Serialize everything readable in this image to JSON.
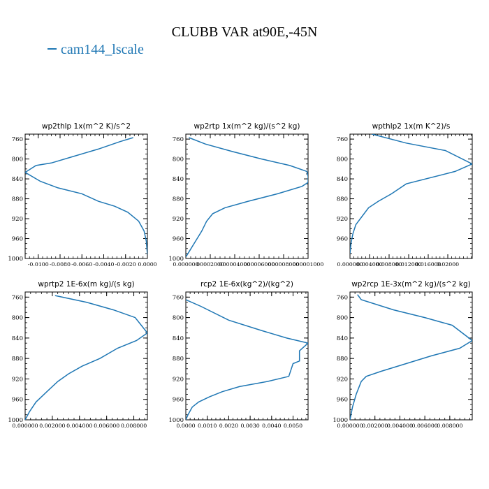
{
  "figure": {
    "title": "CLUBB VAR at90E,-45N",
    "legend": [
      {
        "label": "cam144_lscale",
        "color": "#1f77b4"
      }
    ]
  },
  "chart_data": [
    {
      "type": "line",
      "title": "wp2thlp   1x(m^2 K)/s^2",
      "xlim": [
        -0.0112,
        0.0
      ],
      "ylim": [
        1000,
        750
      ],
      "x_ticks": [
        "-0.0100",
        "-0.0080",
        "-0.0060",
        "-0.0040",
        "-0.0020",
        "0.0000"
      ],
      "x_tick_values": [
        -0.01,
        -0.008,
        -0.006,
        -0.004,
        -0.002,
        0.0
      ],
      "y_ticks": [
        "760",
        "800",
        "840",
        "880",
        "920",
        "960",
        "1000"
      ],
      "y_tick_values": [
        760,
        800,
        840,
        880,
        920,
        960,
        1000
      ],
      "series": [
        {
          "color": "#1f77b4",
          "x": [
            -0.0013,
            -0.0025,
            -0.0045,
            -0.0068,
            -0.0088,
            -0.0102,
            -0.0112,
            -0.0098,
            -0.0082,
            -0.006,
            -0.0045,
            -0.003,
            -0.0018,
            -0.0008,
            -0.0003,
            -0.0001,
            0.0
          ],
          "y": [
            757,
            765,
            780,
            795,
            808,
            813,
            827,
            845,
            858,
            870,
            885,
            895,
            907,
            925,
            945,
            965,
            992
          ]
        }
      ]
    },
    {
      "type": "line",
      "title": "wp2rtp   1x(m^2 kg)/(s^2 kg)",
      "xlim": [
        0.0,
        1e-06
      ],
      "ylim": [
        1000,
        750
      ],
      "x_ticks": [
        "0.000000",
        "0.000000200",
        "0.000000400",
        "0.000000600",
        "0.000000800",
        "0.000001000"
      ],
      "x_tick_labels_shown": [
        "0.000000",
        "00002000",
        "000004000",
        "000006000",
        "000008000",
        "000001000"
      ],
      "x_tick_values": [
        0.0,
        2e-07,
        4e-07,
        6e-07,
        8e-07,
        1e-06
      ],
      "y_ticks": [
        "760",
        "800",
        "840",
        "880",
        "920",
        "960",
        "1000"
      ],
      "y_tick_values": [
        760,
        800,
        840,
        880,
        920,
        960,
        1000
      ],
      "series": [
        {
          "color": "#1f77b4",
          "x": [
            2.5e-08,
            1.6e-07,
            3.8e-07,
            6.2e-07,
            8.5e-07,
            9.9e-07,
            1e-06,
            1e-06,
            9.5e-07,
            7.5e-07,
            5.1e-07,
            3.2e-07,
            2.2e-07,
            1.7e-07,
            1.3e-07,
            8e-08,
            3e-08,
            0.0
          ],
          "y": [
            757,
            770,
            785,
            800,
            813,
            825,
            835,
            847,
            855,
            870,
            885,
            898,
            910,
            925,
            945,
            965,
            985,
            997
          ]
        }
      ]
    },
    {
      "type": "line",
      "title": "wpthlp2   1x(m K^2)/s",
      "xlim": [
        0.0,
        0.025
      ],
      "ylim": [
        1000,
        750
      ],
      "x_ticks": [
        "0.000000",
        "0.004000",
        "0.008000",
        "0.012000",
        "0.016000",
        "0.02000"
      ],
      "x_tick_values": [
        0.0,
        0.004,
        0.008,
        0.012,
        0.016,
        0.02
      ],
      "y_ticks": [
        "760",
        "800",
        "840",
        "880",
        "920",
        "960"
      ],
      "y_tick_values": [
        760,
        800,
        840,
        880,
        920,
        960
      ],
      "series": [
        {
          "color": "#1f77b4",
          "x": [
            0.0045,
            0.0115,
            0.0195,
            0.025,
            0.0215,
            0.0115,
            0.0085,
            0.0058,
            0.0038,
            0.0025,
            0.0012,
            0.0006,
            0.0002,
            0.0
          ],
          "y": [
            750,
            768,
            783,
            810,
            825,
            850,
            870,
            885,
            898,
            915,
            932,
            950,
            970,
            990
          ]
        }
      ]
    },
    {
      "type": "line",
      "title": "wprtp2   1E-6x(m kg)/(s kg)",
      "xlim": [
        0.0,
        0.009
      ],
      "ylim": [
        1000,
        750
      ],
      "x_ticks": [
        "0.000000",
        "0.002000",
        "0.004000",
        "0.006000",
        "0.008000"
      ],
      "x_tick_values": [
        0.0,
        0.002,
        0.004,
        0.006,
        0.008
      ],
      "y_ticks": [
        "760",
        "800",
        "840",
        "880",
        "920",
        "960",
        "1000"
      ],
      "y_tick_values": [
        760,
        800,
        840,
        880,
        920,
        960,
        1000
      ],
      "series": [
        {
          "color": "#1f77b4",
          "x": [
            0.0022,
            0.0045,
            0.0065,
            0.0081,
            0.009,
            0.0082,
            0.0068,
            0.0055,
            0.0042,
            0.0032,
            0.0024,
            0.0016,
            0.0008,
            0.0003,
            0.0
          ],
          "y": [
            757,
            770,
            785,
            800,
            830,
            845,
            860,
            880,
            895,
            910,
            925,
            945,
            965,
            985,
            1000
          ]
        }
      ]
    },
    {
      "type": "line",
      "title": "rcp2   1E-6x(kg^2)/(kg^2)",
      "xlim": [
        0.0,
        0.0057
      ],
      "ylim": [
        1000,
        750
      ],
      "x_ticks": [
        "0.0000",
        "0.0010",
        "0.0020",
        "0.0030",
        "0.0040",
        "0.0050"
      ],
      "x_tick_values": [
        0.0,
        0.001,
        0.002,
        0.003,
        0.004,
        0.005
      ],
      "y_ticks": [
        "760",
        "800",
        "840",
        "880",
        "920",
        "960",
        "1000"
      ],
      "y_tick_values": [
        760,
        800,
        840,
        880,
        920,
        960,
        1000
      ],
      "series": [
        {
          "color": "#1f77b4",
          "x": [
            0.0,
            0.0007,
            0.002,
            0.0035,
            0.0047,
            0.0057,
            0.0053,
            0.0053,
            0.005,
            0.0048,
            0.0038,
            0.0025,
            0.0017,
            0.0011,
            0.0006,
            0.0003,
            0.0001,
            0.0
          ],
          "y": [
            765,
            778,
            805,
            825,
            840,
            850,
            865,
            885,
            890,
            915,
            925,
            935,
            945,
            955,
            965,
            975,
            990,
            1000
          ]
        }
      ]
    },
    {
      "type": "line",
      "title": "wp2rcp   1E-3x(m^2 kg)/(s^2 kg)",
      "xlim": [
        0.0,
        0.0098
      ],
      "ylim": [
        1000,
        750
      ],
      "x_ticks": [
        "0.000000",
        "0.002000",
        "0.004000",
        "0.006000",
        "0.008000"
      ],
      "x_tick_values": [
        0.0,
        0.002,
        0.004,
        0.006,
        0.008
      ],
      "y_ticks": [
        "760",
        "800",
        "840",
        "880",
        "920",
        "960",
        "1000"
      ],
      "y_tick_values": [
        760,
        800,
        840,
        880,
        920,
        960,
        1000
      ],
      "series": [
        {
          "color": "#1f77b4",
          "x": [
            0.0006,
            0.0009,
            0.0035,
            0.006,
            0.0082,
            0.0098,
            0.0088,
            0.0065,
            0.0045,
            0.0025,
            0.0013,
            0.0009,
            0.0005,
            0.0002,
            0.0
          ],
          "y": [
            755,
            765,
            785,
            800,
            815,
            845,
            860,
            875,
            890,
            905,
            915,
            925,
            950,
            975,
            1000
          ]
        }
      ]
    }
  ]
}
